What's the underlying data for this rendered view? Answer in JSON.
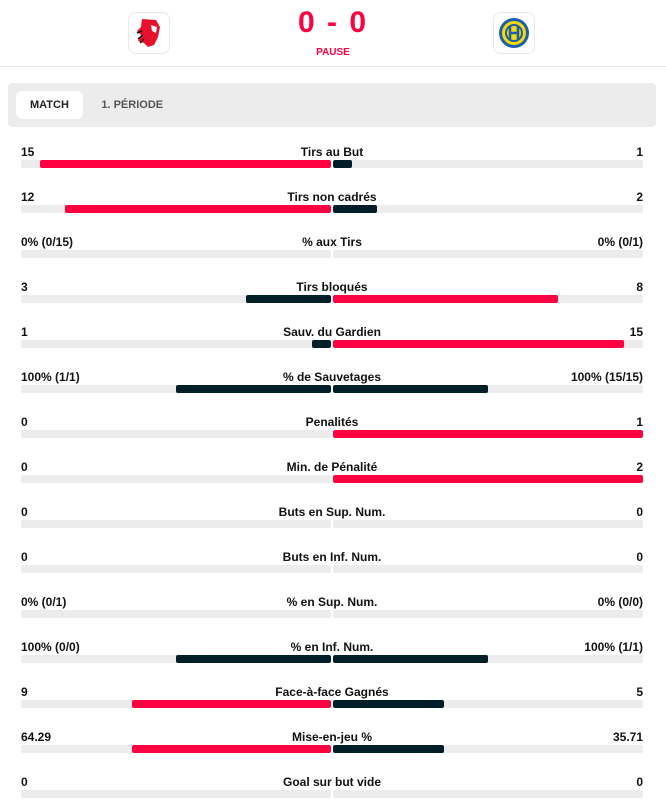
{
  "header": {
    "score": "0 - 0",
    "status": "PAUSE",
    "home_logo": "lion-logo",
    "away_logo": "hcd-logo"
  },
  "tabs": [
    {
      "label": "MATCH",
      "active": true
    },
    {
      "label": "1. PÉRIODE",
      "active": false
    }
  ],
  "colors": {
    "winner": "#ff0040",
    "other": "#001e28",
    "track": "#ececec"
  },
  "stats": [
    {
      "label": "Tirs au But",
      "left": "15",
      "right": "1",
      "lf": 0.9375,
      "rf": 0.0625
    },
    {
      "label": "Tirs non cadrés",
      "left": "12",
      "right": "2",
      "lf": 0.857,
      "rf": 0.143
    },
    {
      "label": "% aux Tirs",
      "left": "0% (0/15)",
      "right": "0% (0/1)",
      "lf": 0,
      "rf": 0
    },
    {
      "label": "Tirs bloqués",
      "left": "3",
      "right": "8",
      "lf": 0.273,
      "rf": 0.727
    },
    {
      "label": "Sauv. du Gardien",
      "left": "1",
      "right": "15",
      "lf": 0.0625,
      "rf": 0.9375
    },
    {
      "label": "% de Sauvetages",
      "left": "100% (1/1)",
      "right": "100% (15/15)",
      "lf": 0.5,
      "rf": 0.5
    },
    {
      "label": "Penalités",
      "left": "0",
      "right": "1",
      "lf": 0,
      "rf": 1
    },
    {
      "label": "Min. de Pénalité",
      "left": "0",
      "right": "2",
      "lf": 0,
      "rf": 1
    },
    {
      "label": "Buts en Sup. Num.",
      "left": "0",
      "right": "0",
      "lf": 0,
      "rf": 0
    },
    {
      "label": "Buts en Inf. Num.",
      "left": "0",
      "right": "0",
      "lf": 0,
      "rf": 0
    },
    {
      "label": "% en Sup. Num.",
      "left": "0% (0/1)",
      "right": "0% (0/0)",
      "lf": 0,
      "rf": 0
    },
    {
      "label": "% en Inf. Num.",
      "left": "100% (0/0)",
      "right": "100% (1/1)",
      "lf": 0.5,
      "rf": 0.5
    },
    {
      "label": "Face-à-face Gagnés",
      "left": "9",
      "right": "5",
      "lf": 0.643,
      "rf": 0.357
    },
    {
      "label": "Mise-en-jeu %",
      "left": "64.29",
      "right": "35.71",
      "lf": 0.6429,
      "rf": 0.3571
    },
    {
      "label": "Goal sur but vide",
      "left": "0",
      "right": "0",
      "lf": 0,
      "rf": 0
    }
  ]
}
